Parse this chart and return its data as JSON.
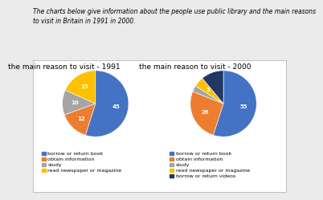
{
  "title_text": "The charts below give information about the people use public library and the main reasons\nto visit in Britain in 1991 in 2000.",
  "chart1_title": "the main reason to visit - 1991",
  "chart2_title": "the main reason to visit - 2000",
  "pie1": {
    "values": [
      45,
      12,
      10,
      15
    ],
    "colors": [
      "#4472C4",
      "#ED7D31",
      "#A5A5A5",
      "#FFC000"
    ],
    "autopct_values": [
      "45",
      "12",
      "10",
      "15"
    ],
    "startangle": 90
  },
  "pie2": {
    "values": [
      55,
      26,
      3,
      5,
      11
    ],
    "colors": [
      "#4472C4",
      "#ED7D31",
      "#A5A5A5",
      "#FFC000",
      "#1F3864"
    ],
    "autopct_values": [
      "55",
      "26",
      "",
      "5",
      ""
    ],
    "startangle": 90
  },
  "legend1": [
    "borrow or return book",
    "obtain information",
    "study",
    "read newspaper or magazine"
  ],
  "legend2": [
    "borrow or return book",
    "obtain information",
    "study",
    "read newspaper or magazine",
    "borrow or return videos"
  ],
  "legend_colors1": [
    "#4472C4",
    "#ED7D31",
    "#A5A5A5",
    "#FFC000"
  ],
  "legend_colors2": [
    "#4472C4",
    "#ED7D31",
    "#A5A5A5",
    "#FFC000",
    "#1F3864"
  ],
  "bg_color": "#FFFFFF",
  "outer_bg": "#EBEBEB",
  "title_fontsize": 5.5,
  "chart_title_fontsize": 6.5,
  "legend_fontsize": 4.5,
  "label_fontsize": 5
}
